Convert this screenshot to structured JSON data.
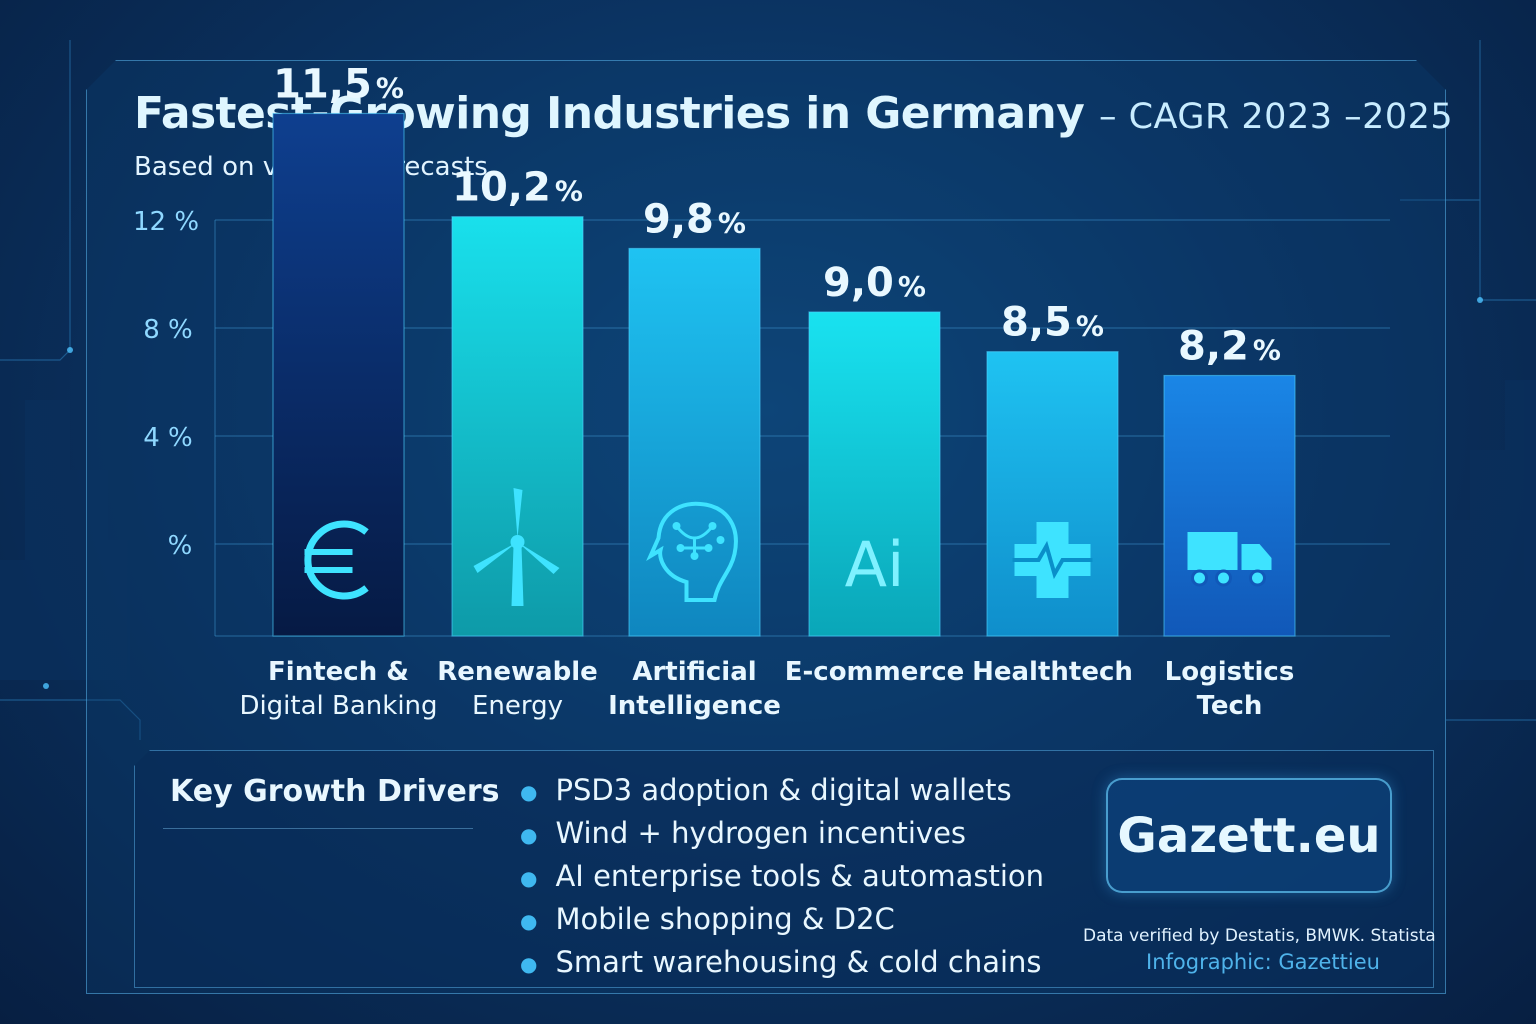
{
  "header": {
    "title_main": "Fastest-Growing Industries in Germany",
    "title_suffix": "– CAGR 2023 –2025",
    "subtitle": "Based on verified forecasts"
  },
  "chart_data": {
    "type": "bar",
    "title": "Fastest-Growing Industries in Germany – CAGR 2023 –2025",
    "subtitle": "Based on verified forecasts",
    "categories": [
      "Fintech & Digital Banking",
      "Renewable Energy",
      "Artificial Intelligence",
      "E-commerce",
      "Healthtech",
      "Logistics Tech"
    ],
    "category_lines": [
      [
        "Fintech &",
        "Digital Banking"
      ],
      [
        "Renewable",
        "Energy"
      ],
      [
        "Artificial",
        "Intelligence"
      ],
      [
        "E-commerce"
      ],
      [
        "Healthtech"
      ],
      [
        "Logistics",
        "Tech"
      ]
    ],
    "values": [
      11.5,
      10.2,
      9.8,
      9.0,
      8.5,
      8.2
    ],
    "data_labels": [
      "11,5",
      "10,2",
      "9,8",
      "9,0",
      "8,5",
      "8,2"
    ],
    "value_suffix": "%",
    "y_tick_labels": [
      "12 %",
      "8 %",
      "4 %",
      "%"
    ],
    "xlabel": "",
    "ylabel": "",
    "grid": true,
    "bar_icons": [
      "euro-icon",
      "wind-turbine-icon",
      "ai-head-icon",
      "ai-text-icon",
      "medical-cross-icon",
      "truck-icon"
    ],
    "ai_icon_text": "Ai",
    "colors": {
      "bar_tops": [
        "#0e3f8f",
        "#19e0ec",
        "#1fc3f2",
        "#19e2f0",
        "#1fc3f2",
        "#1a86e6"
      ],
      "bar_bottoms": [
        "#061a44",
        "#0e9aa8",
        "#0f86bf",
        "#0aa6b8",
        "#0f8ecb",
        "#1158b8"
      ],
      "icon": "#3ee3ff",
      "grid": "#3a8fc9"
    }
  },
  "drivers": {
    "title": "Key Growth Drivers",
    "items": [
      "PSD3 adoption & digital wallets",
      "Wind + hydrogen incentives",
      "AI enterprise tools & automastion",
      "Mobile shopping & D2C",
      "Smart warehousing & cold chains"
    ]
  },
  "brand": {
    "name": "Gazett.eu"
  },
  "footer": {
    "source": "Data verified by Destatis, BMWK. Statista",
    "credit": "Infographic: Gazettieu"
  }
}
